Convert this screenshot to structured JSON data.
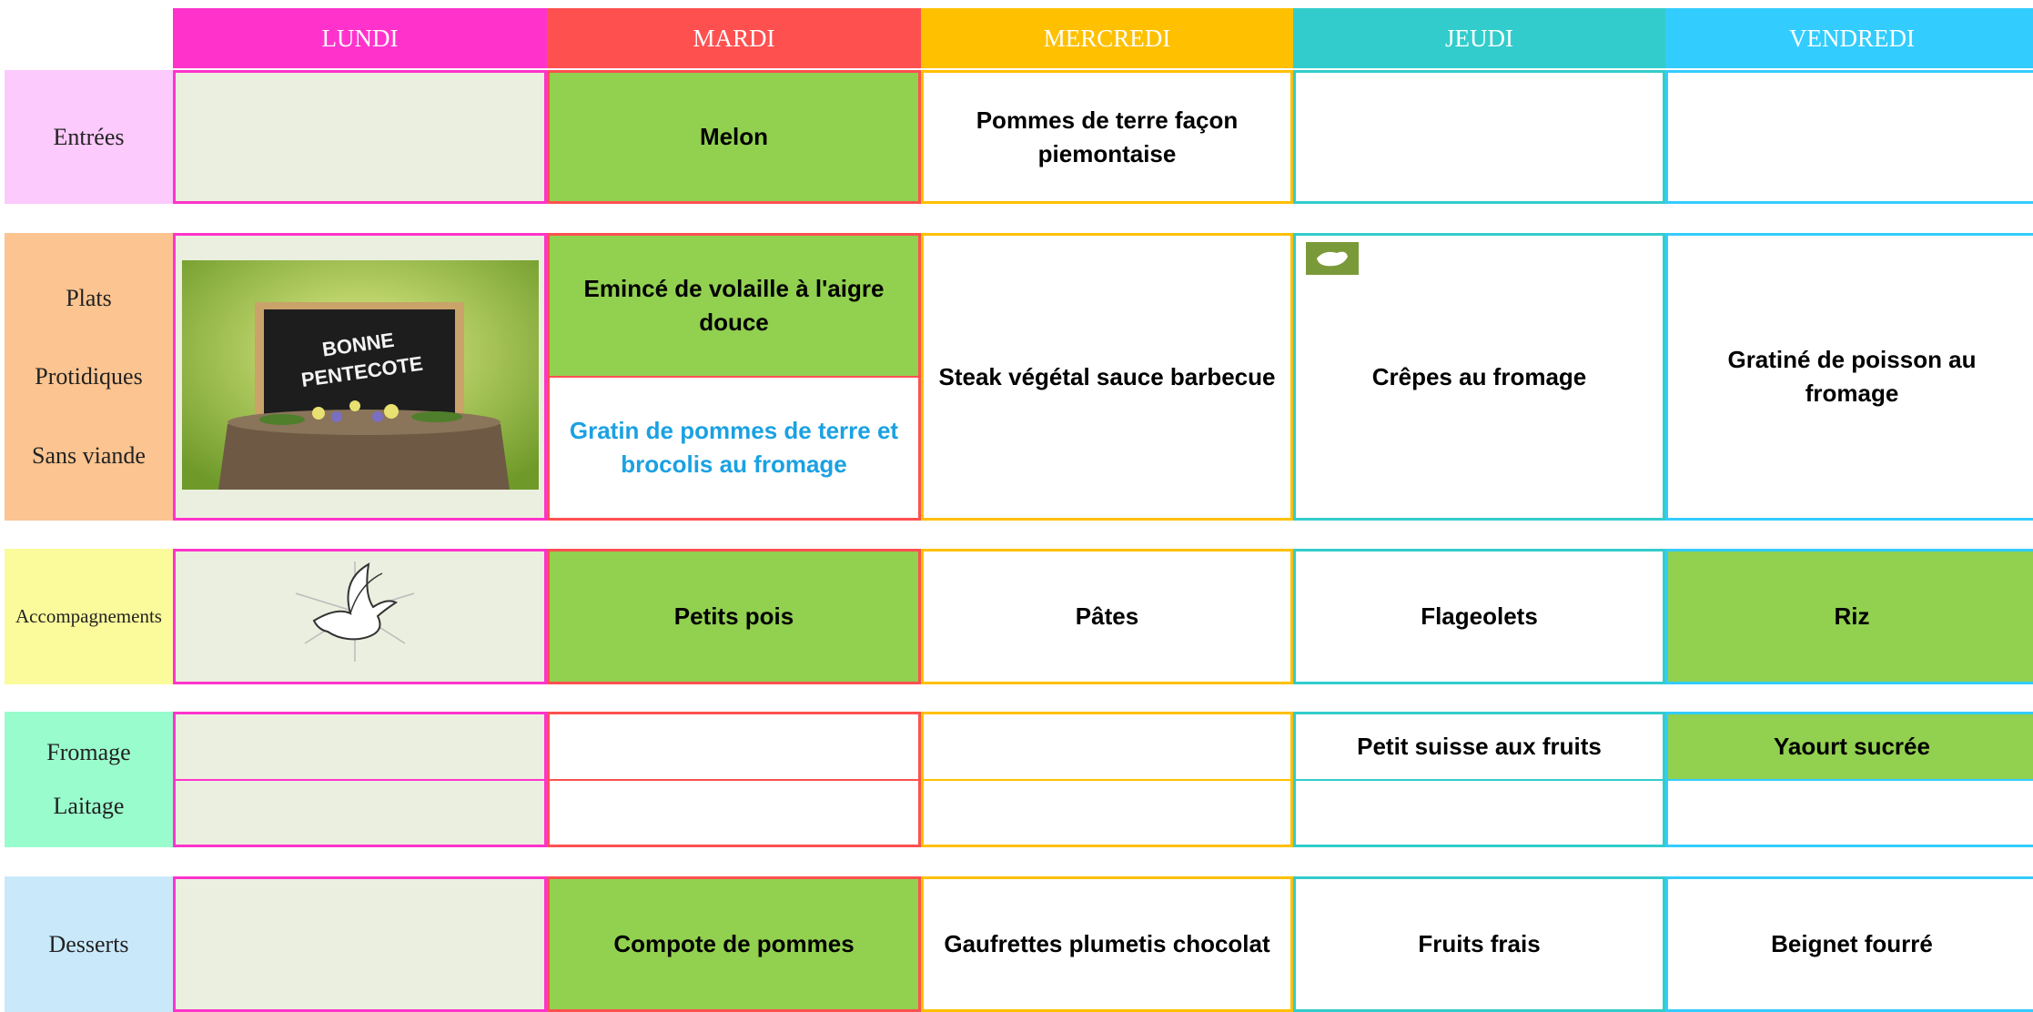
{
  "days": [
    "LUNDI",
    "MARDI",
    "MERCREDI",
    "JEUDI",
    "VENDREDI"
  ],
  "day_colors": [
    "#ff33cc",
    "#ff5050",
    "#ffc000",
    "#33cccc",
    "#33ccff"
  ],
  "rows": [
    {
      "label": [
        "Entrées"
      ],
      "label_color": "#fccafc",
      "cells": [
        [
          {
            "fill": "#ebefdf"
          }
        ],
        [
          {
            "fill": "#92d050",
            "text": "Melon"
          }
        ],
        [
          {
            "fill": "#ffffff",
            "text": "Pommes de terre façon piemontaise"
          }
        ],
        [
          {
            "fill": "#ffffff"
          }
        ],
        [
          {
            "fill": "#ffffff"
          }
        ]
      ]
    },
    {
      "label": [
        "Plats",
        "Protidiques",
        "Sans viande"
      ],
      "label_color": "#fbc490",
      "cells": [
        [
          {
            "fill": "#ebefdf",
            "image_text": [
              "BONNE",
              "PENTECOTE"
            ]
          }
        ],
        [
          {
            "fill": "#92d050",
            "text": "Emincé de volaille à l'aigre douce"
          },
          {
            "fill": "#ffffff",
            "text": "Gratin de pommes de terre et brocolis au fromage",
            "text_color": "#1ba1e2"
          }
        ],
        [
          {
            "fill": "#ffffff",
            "text": "Steak végétal sauce barbecue"
          }
        ],
        [
          {
            "fill": "#ffffff",
            "text": "Crêpes au fromage"
          }
        ],
        [
          {
            "fill": "#ffffff",
            "text": "Gratiné de poisson au fromage"
          }
        ]
      ]
    },
    {
      "label": [
        "Accompagnements"
      ],
      "label_color": "#fbfb9b",
      "cells": [
        [
          {
            "fill": "#ebefdf"
          }
        ],
        [
          {
            "fill": "#92d050",
            "text": "Petits pois"
          }
        ],
        [
          {
            "fill": "#ffffff",
            "text": "Pâtes"
          }
        ],
        [
          {
            "fill": "#ffffff",
            "text": "Flageolets"
          }
        ],
        [
          {
            "fill": "#92d050",
            "text": "Riz"
          }
        ]
      ]
    },
    {
      "label": [
        "Fromage",
        "Laitage"
      ],
      "label_color": "#99fccc",
      "cells": [
        [
          {
            "fill": "#ebefdf"
          },
          {
            "fill": "#ebefdf"
          }
        ],
        [
          {
            "fill": "#ffffff"
          },
          {
            "fill": "#ffffff"
          }
        ],
        [
          {
            "fill": "#ffffff"
          },
          {
            "fill": "#ffffff"
          }
        ],
        [
          {
            "fill": "#ffffff",
            "text": "Petit suisse aux fruits"
          },
          {
            "fill": "#ffffff"
          }
        ],
        [
          {
            "fill": "#92d050",
            "text": "Yaourt sucrée"
          },
          {
            "fill": "#ffffff"
          }
        ]
      ]
    },
    {
      "label": [
        "Desserts"
      ],
      "label_color": "#c9e9fb",
      "cells": [
        [
          {
            "fill": "#ebefdf"
          }
        ],
        [
          {
            "fill": "#92d050",
            "text": "Compote de pommes"
          }
        ],
        [
          {
            "fill": "#ffffff",
            "text": "Gaufrettes plumetis chocolat"
          }
        ],
        [
          {
            "fill": "#ffffff",
            "text": "Fruits frais"
          }
        ],
        [
          {
            "fill": "#ffffff",
            "text": "Beignet fourré"
          }
        ]
      ]
    }
  ]
}
